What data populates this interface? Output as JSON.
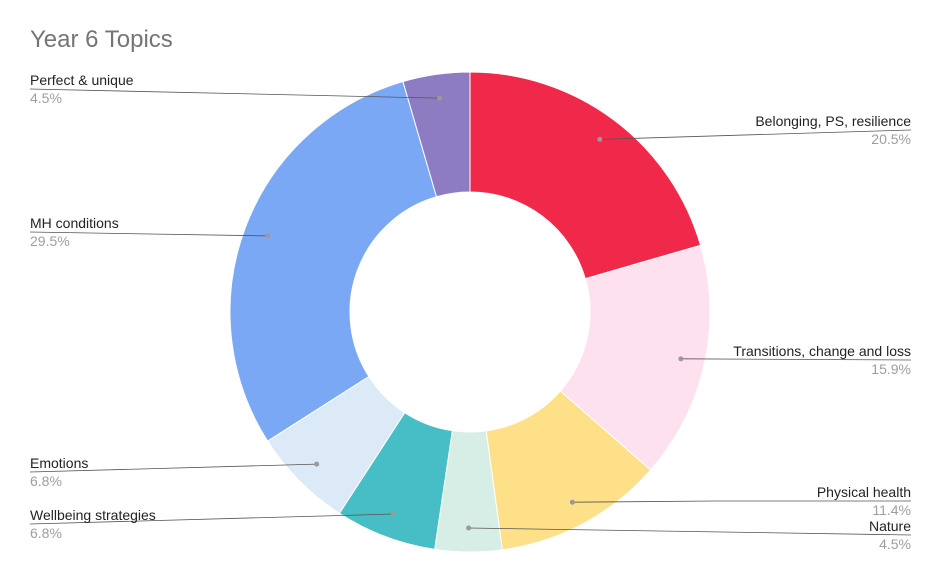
{
  "chart_data": {
    "type": "pie",
    "donut": true,
    "title": "Year 6 Topics",
    "slices": [
      {
        "label": "Belonging, PS, resilience",
        "value": 20.5,
        "display": "20.5%",
        "color": "#f0294a"
      },
      {
        "label": "Transitions, change and loss",
        "value": 15.9,
        "display": "15.9%",
        "color": "#fde1ef"
      },
      {
        "label": "Physical health",
        "value": 11.4,
        "display": "11.4%",
        "color": "#fde087"
      },
      {
        "label": "Nature",
        "value": 4.5,
        "display": "4.5%",
        "color": "#d7eee6"
      },
      {
        "label": "Wellbeing strategies",
        "value": 6.8,
        "display": "6.8%",
        "color": "#47bdc6"
      },
      {
        "label": "Emotions",
        "value": 6.8,
        "display": "6.8%",
        "color": "#dceaf7"
      },
      {
        "label": "MH conditions",
        "value": 29.5,
        "display": "29.5%",
        "color": "#7ba8f4"
      },
      {
        "label": "Perfect & unique",
        "value": 4.5,
        "display": "4.5%",
        "color": "#8e7cc3"
      }
    ],
    "legend": "none"
  }
}
